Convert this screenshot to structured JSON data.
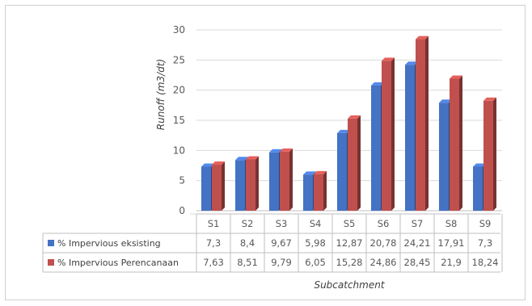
{
  "chart_data": {
    "type": "bar",
    "title": "",
    "ylabel": "Runoff (m3/dt)",
    "xlabel": "Subcatchment",
    "ylim": [
      0,
      30
    ],
    "yticks": [
      "0",
      "5",
      "10",
      "15",
      "20",
      "25",
      "30"
    ],
    "ytick_values": [
      0,
      5,
      10,
      15,
      20,
      25,
      30
    ],
    "grid": true,
    "categories": [
      "S1",
      "S2",
      "S3",
      "S4",
      "S5",
      "S6",
      "S7",
      "S8",
      "S9"
    ],
    "series": [
      {
        "name": "% Impervious eksisting",
        "color": "#4472c4",
        "values": [
          7.3,
          8.4,
          9.67,
          5.98,
          12.87,
          20.78,
          24.21,
          17.91,
          7.3
        ],
        "labels": [
          "7,3",
          "8,4",
          "9,67",
          "5,98",
          "12,87",
          "20,78",
          "24,21",
          "17,91",
          "7,3"
        ]
      },
      {
        "name": "% Impervious Perencanaan",
        "color": "#c0504d",
        "values": [
          7.63,
          8.51,
          9.79,
          6.05,
          15.28,
          24.86,
          28.45,
          21.9,
          18.24
        ],
        "labels": [
          "7,63",
          "8,51",
          "9,79",
          "6,05",
          "15,28",
          "24,86",
          "28,45",
          "21,9",
          "18,24"
        ]
      }
    ],
    "legend_placement": "data-table"
  }
}
